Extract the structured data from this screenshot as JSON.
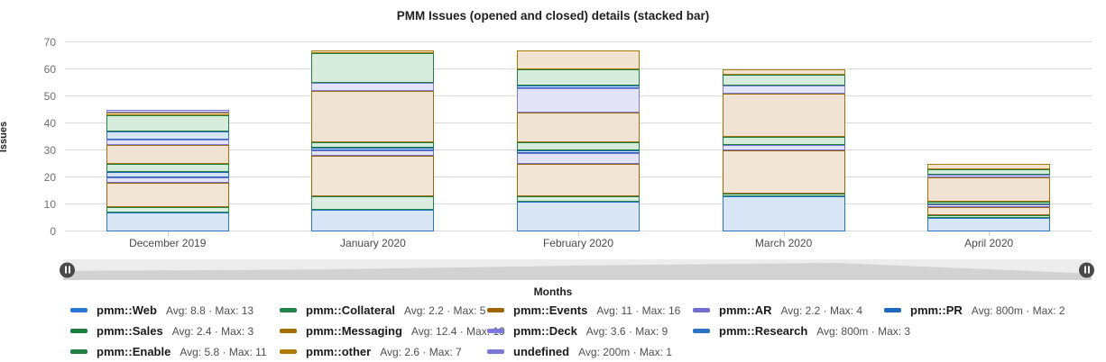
{
  "title": "PMM Issues (opened and closed) details (stacked bar)",
  "y_axis": {
    "label": "Issues",
    "ticks": [
      0,
      10,
      20,
      30,
      40,
      50,
      60,
      70
    ]
  },
  "x_axis": {
    "label": "Months"
  },
  "chart_data": {
    "type": "bar",
    "stacked": true,
    "title": "PMM Issues (opened and closed) details (stacked bar)",
    "xlabel": "Months",
    "ylabel": "Issues",
    "ylim": [
      0,
      70
    ],
    "grid": true,
    "legend_position": "bottom",
    "categories": [
      "December 2019",
      "January 2020",
      "February 2020",
      "March 2020",
      "April 2020"
    ],
    "totals": [
      45,
      67,
      67,
      60,
      25
    ],
    "series": [
      {
        "name": "pmm::Web",
        "stats": "Avg: 8.8 · Max: 13",
        "avg": "8.8",
        "max": "13",
        "color": "#2a76d2",
        "fill": "#d8e6f6",
        "values": [
          7,
          8,
          11,
          13,
          5
        ]
      },
      {
        "name": "pmm::Collateral",
        "stats": "Avg: 2.2 · Max: 5",
        "avg": "2.2",
        "max": "5",
        "color": "#218549",
        "fill": "#daede0",
        "values": [
          2,
          5,
          2,
          1,
          1
        ]
      },
      {
        "name": "pmm::Events",
        "stats": "Avg: 11 · Max: 16",
        "avg": "11",
        "max": "16",
        "color": "#9e6602",
        "fill": "#f2e5d5",
        "values": [
          9,
          15,
          12,
          16,
          3
        ]
      },
      {
        "name": "pmm::AR",
        "stats": "Avg: 2.2 · Max: 4",
        "avg": "2.2",
        "max": "4",
        "color": "#6f6fce",
        "fill": "#e3e3f6",
        "values": [
          2,
          2,
          4,
          2,
          1
        ]
      },
      {
        "name": "pmm::PR",
        "stats": "Avg: 800m · Max: 2",
        "avg": "800m",
        "max": "2",
        "color": "#1f66c0",
        "fill": "#d6e2f4",
        "values": [
          2,
          1,
          1,
          0,
          0
        ]
      },
      {
        "name": "pmm::Sales",
        "stats": "Avg: 2.4 · Max: 3",
        "avg": "2.4",
        "max": "3",
        "color": "#1b7e3e",
        "fill": "#d7ebdd",
        "values": [
          3,
          2,
          3,
          3,
          1
        ]
      },
      {
        "name": "pmm::Messaging",
        "stats": "Avg: 12.4 · Max: 19",
        "avg": "12.4",
        "max": "19",
        "color": "#a36e08",
        "fill": "#f1e3d3",
        "values": [
          7,
          19,
          11,
          16,
          9
        ]
      },
      {
        "name": "pmm::Deck",
        "stats": "Avg: 3.6 · Max: 9",
        "avg": "3.6",
        "max": "9",
        "color": "#7b7bdc",
        "fill": "#e4e4f8",
        "values": [
          2,
          3,
          9,
          3,
          1
        ]
      },
      {
        "name": "pmm::Research",
        "stats": "Avg: 800m · Max: 3",
        "avg": "800m",
        "max": "3",
        "color": "#2b72c4",
        "fill": "#d8e5f4",
        "values": [
          3,
          0,
          1,
          0,
          0
        ]
      },
      {
        "name": "pmm::Enable",
        "stats": "Avg: 5.8 · Max: 11",
        "avg": "5.8",
        "max": "11",
        "color": "#1f8040",
        "fill": "#d8ecdd",
        "values": [
          6,
          11,
          6,
          4,
          2
        ]
      },
      {
        "name": "pmm::other",
        "stats": "Avg: 2.6 · Max: 7",
        "avg": "2.6",
        "max": "7",
        "color": "#ad7905",
        "fill": "#f0e4d0",
        "values": [
          1,
          1,
          7,
          2,
          2
        ]
      },
      {
        "name": "undefined",
        "stats": "Avg: 200m · Max: 1",
        "avg": "200m",
        "max": "1",
        "color": "#7878d6",
        "fill": "#e4e4f7",
        "values": [
          1,
          0,
          0,
          0,
          0
        ]
      }
    ]
  },
  "legend": {
    "rows": [
      [
        "pmm::Web",
        "pmm::Collateral",
        "pmm::Events",
        "pmm::AR",
        "pmm::PR"
      ],
      [
        "pmm::Sales",
        "pmm::Messaging",
        "pmm::Deck",
        "pmm::Research"
      ],
      [
        "pmm::Enable",
        "pmm::other",
        "undefined"
      ]
    ]
  },
  "slider": {
    "shadow_series": "pmm::Web"
  }
}
